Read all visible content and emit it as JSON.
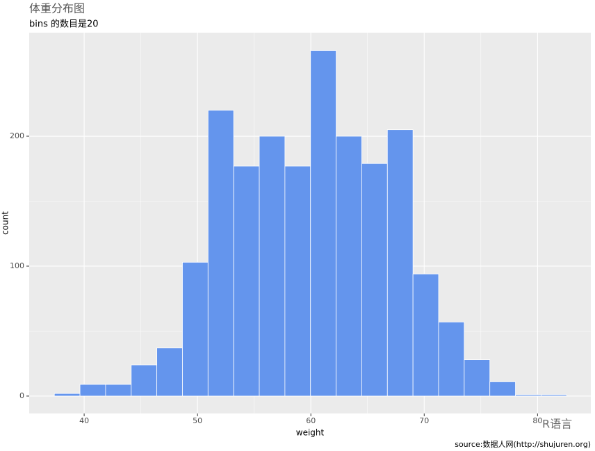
{
  "chart_data": {
    "type": "histogram",
    "title": "体重分布图",
    "subtitle": "bins 的数目是20",
    "x_label": "weight",
    "y_label": "count",
    "caption": "source:数据人网(http://shujuren.org)",
    "watermark": "R语言",
    "bins": [
      37.37,
      39.63,
      41.89,
      44.15,
      46.41,
      48.67,
      50.93,
      53.19,
      55.45,
      57.71,
      59.97,
      62.23,
      64.49,
      66.75,
      69.01,
      71.27,
      73.53,
      75.79,
      78.05,
      80.31,
      82.57
    ],
    "values": [
      2,
      9,
      9,
      24,
      37,
      103,
      220,
      177,
      200,
      177,
      266,
      200,
      179,
      205,
      94,
      57,
      28,
      11,
      1,
      1
    ],
    "color": "#6495ED",
    "edge_color": "#ffffff",
    "xlim": [
      35.15,
      84.7
    ],
    "ylim": [
      -13.4,
      279.7
    ],
    "xticks": [
      40,
      50,
      60,
      70,
      80
    ],
    "yticks": [
      0,
      100,
      200
    ],
    "grid": true
  }
}
